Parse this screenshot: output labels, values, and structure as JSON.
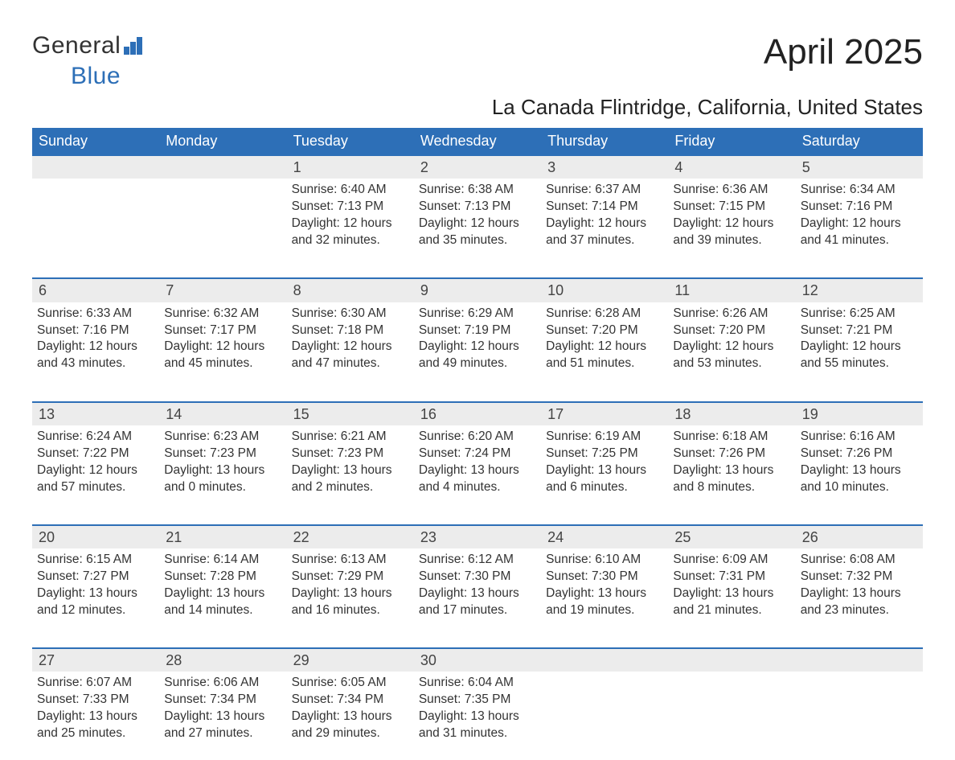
{
  "logo": {
    "text1": "General",
    "text2": "Blue"
  },
  "title": "April 2025",
  "subtitle": "La Canada Flintridge, California, United States",
  "colors": {
    "accent": "#2d6fb7",
    "header_bg": "#2d6fb7",
    "header_text": "#ffffff",
    "daynum_bg": "#ececec",
    "text": "#333333",
    "page_bg": "#ffffff"
  },
  "columns": [
    "Sunday",
    "Monday",
    "Tuesday",
    "Wednesday",
    "Thursday",
    "Friday",
    "Saturday"
  ],
  "weeks": [
    [
      null,
      null,
      {
        "n": "1",
        "sunrise": "Sunrise: 6:40 AM",
        "sunset": "Sunset: 7:13 PM",
        "day": "Daylight: 12 hours and 32 minutes."
      },
      {
        "n": "2",
        "sunrise": "Sunrise: 6:38 AM",
        "sunset": "Sunset: 7:13 PM",
        "day": "Daylight: 12 hours and 35 minutes."
      },
      {
        "n": "3",
        "sunrise": "Sunrise: 6:37 AM",
        "sunset": "Sunset: 7:14 PM",
        "day": "Daylight: 12 hours and 37 minutes."
      },
      {
        "n": "4",
        "sunrise": "Sunrise: 6:36 AM",
        "sunset": "Sunset: 7:15 PM",
        "day": "Daylight: 12 hours and 39 minutes."
      },
      {
        "n": "5",
        "sunrise": "Sunrise: 6:34 AM",
        "sunset": "Sunset: 7:16 PM",
        "day": "Daylight: 12 hours and 41 minutes."
      }
    ],
    [
      {
        "n": "6",
        "sunrise": "Sunrise: 6:33 AM",
        "sunset": "Sunset: 7:16 PM",
        "day": "Daylight: 12 hours and 43 minutes."
      },
      {
        "n": "7",
        "sunrise": "Sunrise: 6:32 AM",
        "sunset": "Sunset: 7:17 PM",
        "day": "Daylight: 12 hours and 45 minutes."
      },
      {
        "n": "8",
        "sunrise": "Sunrise: 6:30 AM",
        "sunset": "Sunset: 7:18 PM",
        "day": "Daylight: 12 hours and 47 minutes."
      },
      {
        "n": "9",
        "sunrise": "Sunrise: 6:29 AM",
        "sunset": "Sunset: 7:19 PM",
        "day": "Daylight: 12 hours and 49 minutes."
      },
      {
        "n": "10",
        "sunrise": "Sunrise: 6:28 AM",
        "sunset": "Sunset: 7:20 PM",
        "day": "Daylight: 12 hours and 51 minutes."
      },
      {
        "n": "11",
        "sunrise": "Sunrise: 6:26 AM",
        "sunset": "Sunset: 7:20 PM",
        "day": "Daylight: 12 hours and 53 minutes."
      },
      {
        "n": "12",
        "sunrise": "Sunrise: 6:25 AM",
        "sunset": "Sunset: 7:21 PM",
        "day": "Daylight: 12 hours and 55 minutes."
      }
    ],
    [
      {
        "n": "13",
        "sunrise": "Sunrise: 6:24 AM",
        "sunset": "Sunset: 7:22 PM",
        "day": "Daylight: 12 hours and 57 minutes."
      },
      {
        "n": "14",
        "sunrise": "Sunrise: 6:23 AM",
        "sunset": "Sunset: 7:23 PM",
        "day": "Daylight: 13 hours and 0 minutes."
      },
      {
        "n": "15",
        "sunrise": "Sunrise: 6:21 AM",
        "sunset": "Sunset: 7:23 PM",
        "day": "Daylight: 13 hours and 2 minutes."
      },
      {
        "n": "16",
        "sunrise": "Sunrise: 6:20 AM",
        "sunset": "Sunset: 7:24 PM",
        "day": "Daylight: 13 hours and 4 minutes."
      },
      {
        "n": "17",
        "sunrise": "Sunrise: 6:19 AM",
        "sunset": "Sunset: 7:25 PM",
        "day": "Daylight: 13 hours and 6 minutes."
      },
      {
        "n": "18",
        "sunrise": "Sunrise: 6:18 AM",
        "sunset": "Sunset: 7:26 PM",
        "day": "Daylight: 13 hours and 8 minutes."
      },
      {
        "n": "19",
        "sunrise": "Sunrise: 6:16 AM",
        "sunset": "Sunset: 7:26 PM",
        "day": "Daylight: 13 hours and 10 minutes."
      }
    ],
    [
      {
        "n": "20",
        "sunrise": "Sunrise: 6:15 AM",
        "sunset": "Sunset: 7:27 PM",
        "day": "Daylight: 13 hours and 12 minutes."
      },
      {
        "n": "21",
        "sunrise": "Sunrise: 6:14 AM",
        "sunset": "Sunset: 7:28 PM",
        "day": "Daylight: 13 hours and 14 minutes."
      },
      {
        "n": "22",
        "sunrise": "Sunrise: 6:13 AM",
        "sunset": "Sunset: 7:29 PM",
        "day": "Daylight: 13 hours and 16 minutes."
      },
      {
        "n": "23",
        "sunrise": "Sunrise: 6:12 AM",
        "sunset": "Sunset: 7:30 PM",
        "day": "Daylight: 13 hours and 17 minutes."
      },
      {
        "n": "24",
        "sunrise": "Sunrise: 6:10 AM",
        "sunset": "Sunset: 7:30 PM",
        "day": "Daylight: 13 hours and 19 minutes."
      },
      {
        "n": "25",
        "sunrise": "Sunrise: 6:09 AM",
        "sunset": "Sunset: 7:31 PM",
        "day": "Daylight: 13 hours and 21 minutes."
      },
      {
        "n": "26",
        "sunrise": "Sunrise: 6:08 AM",
        "sunset": "Sunset: 7:32 PM",
        "day": "Daylight: 13 hours and 23 minutes."
      }
    ],
    [
      {
        "n": "27",
        "sunrise": "Sunrise: 6:07 AM",
        "sunset": "Sunset: 7:33 PM",
        "day": "Daylight: 13 hours and 25 minutes."
      },
      {
        "n": "28",
        "sunrise": "Sunrise: 6:06 AM",
        "sunset": "Sunset: 7:34 PM",
        "day": "Daylight: 13 hours and 27 minutes."
      },
      {
        "n": "29",
        "sunrise": "Sunrise: 6:05 AM",
        "sunset": "Sunset: 7:34 PM",
        "day": "Daylight: 13 hours and 29 minutes."
      },
      {
        "n": "30",
        "sunrise": "Sunrise: 6:04 AM",
        "sunset": "Sunset: 7:35 PM",
        "day": "Daylight: 13 hours and 31 minutes."
      },
      null,
      null,
      null
    ]
  ]
}
